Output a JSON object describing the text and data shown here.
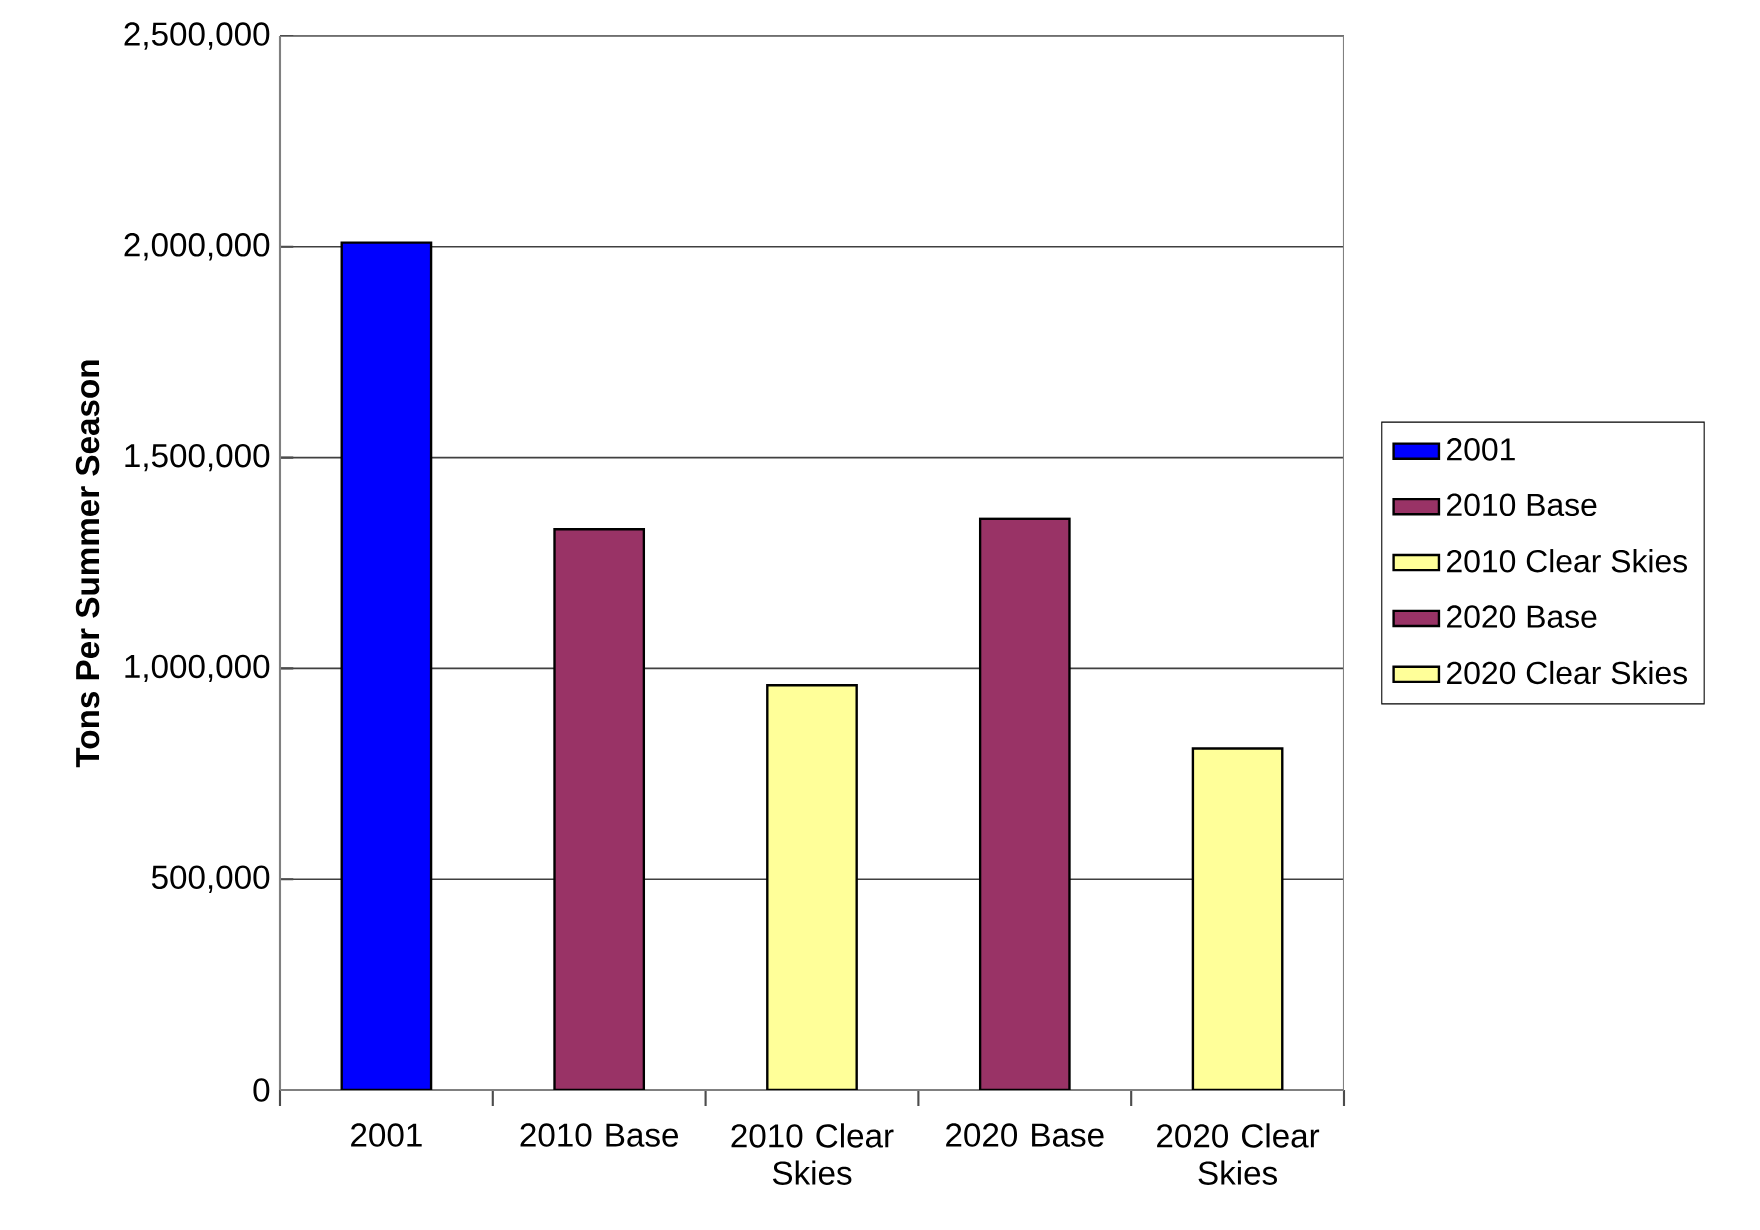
{
  "chart_data": {
    "type": "bar",
    "ylabel": "Tons Per Summer Season",
    "categories": [
      "2001",
      "2010 Base",
      "2010 Clear Skies",
      "2020 Base",
      "2020 Clear Skies"
    ],
    "series": [
      {
        "name": "2001",
        "color": "#0000ff",
        "values": [
          2010000,
          null,
          null,
          null,
          null
        ]
      },
      {
        "name": "2010 Base",
        "color": "#993366",
        "values": [
          null,
          1330000,
          null,
          null,
          null
        ]
      },
      {
        "name": "2010 Clear Skies",
        "color": "#ffff99",
        "values": [
          null,
          null,
          960000,
          null,
          null
        ]
      },
      {
        "name": "2020 Base",
        "color": "#993366",
        "values": [
          null,
          null,
          null,
          1355000,
          null
        ]
      },
      {
        "name": "2020 Clear Skies",
        "color": "#ffff99",
        "values": [
          null,
          null,
          null,
          null,
          810000
        ]
      }
    ],
    "ylim": [
      0,
      2500000
    ],
    "yticks": [
      {
        "value": 0,
        "label": "0"
      },
      {
        "value": 500000,
        "label": "500,000"
      },
      {
        "value": 1000000,
        "label": "1,000,000"
      },
      {
        "value": 1500000,
        "label": "1,500,000"
      },
      {
        "value": 2000000,
        "label": "2,000,000"
      },
      {
        "value": 2500000,
        "label": "2,500,000"
      }
    ],
    "grid": "y",
    "legend": "right"
  }
}
